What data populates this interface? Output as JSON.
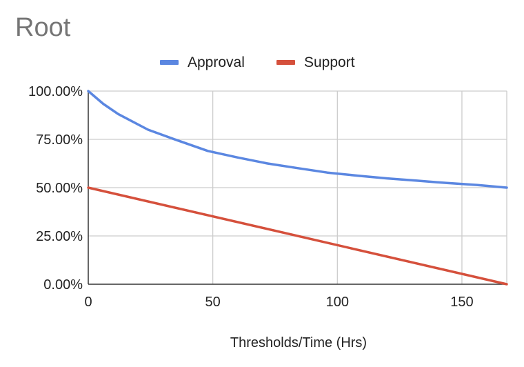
{
  "chart_data": {
    "type": "line",
    "title": "Root",
    "xlabel": "Thresholds/Time (Hrs)",
    "ylabel": "",
    "xlim": [
      0,
      168
    ],
    "ylim": [
      0,
      100
    ],
    "x_ticks": [
      0,
      50,
      100,
      150
    ],
    "x_tick_labels": [
      "0",
      "50",
      "100",
      "150"
    ],
    "y_ticks": [
      0,
      25,
      50,
      75,
      100
    ],
    "y_tick_labels": [
      "0.00%",
      "25.00%",
      "50.00%",
      "75.00%",
      "100.00%"
    ],
    "grid": true,
    "legend_position": "top-center",
    "series": [
      {
        "name": "Approval",
        "color": "#5b87e1",
        "x": [
          0,
          6,
          12,
          24,
          36,
          48,
          60,
          72,
          84,
          96,
          108,
          120,
          132,
          144,
          156,
          168
        ],
        "values": [
          100,
          93.4,
          88.1,
          80.0,
          74.4,
          69.0,
          65.6,
          62.5,
          60.1,
          57.8,
          56.2,
          54.8,
          53.6,
          52.4,
          51.4,
          50.0
        ]
      },
      {
        "name": "Support",
        "color": "#d5503c",
        "x": [
          0,
          168
        ],
        "values": [
          50,
          0
        ]
      }
    ]
  }
}
